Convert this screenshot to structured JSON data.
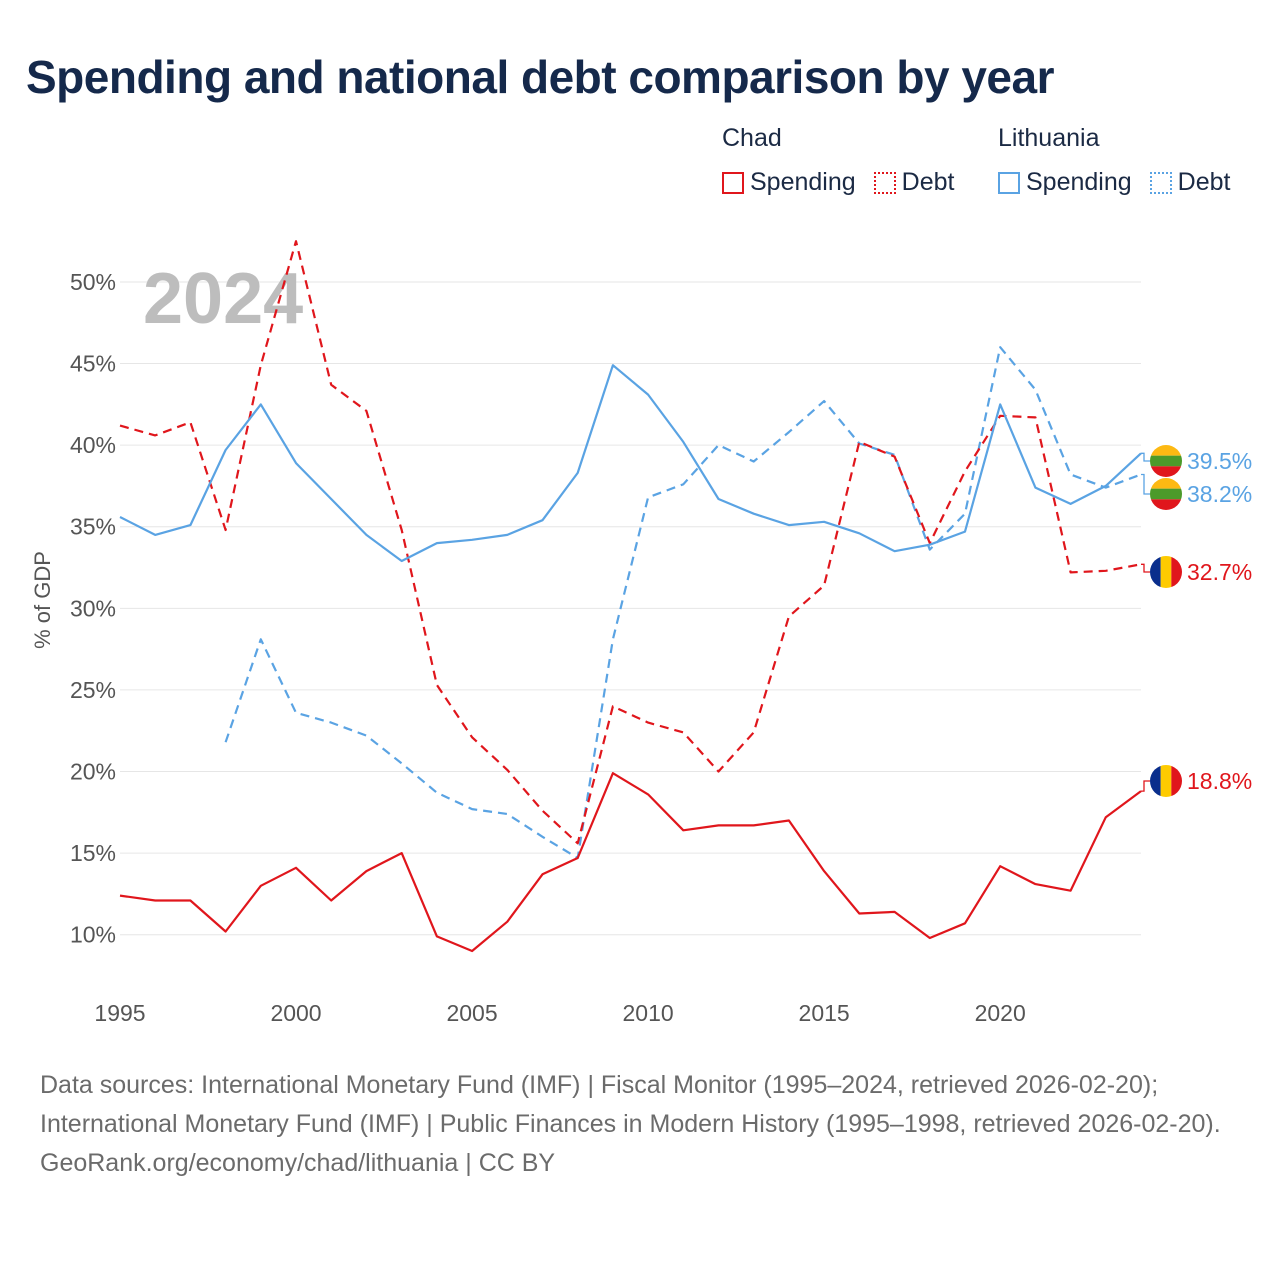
{
  "title": "Spending and national debt comparison by year",
  "legend": {
    "groups": [
      {
        "country": "Chad",
        "color": "#e0161c",
        "items": [
          {
            "label": "Spending",
            "style": "solid"
          },
          {
            "label": "Debt",
            "style": "dotted"
          }
        ]
      },
      {
        "country": "Lithuania",
        "color": "#5aa3e3",
        "items": [
          {
            "label": "Spending",
            "style": "solid"
          },
          {
            "label": "Debt",
            "style": "dotted"
          }
        ]
      }
    ]
  },
  "chart_data": {
    "type": "line",
    "title": "Spending and national debt comparison by year",
    "year_watermark": "2024",
    "xlabel": "",
    "ylabel": "% of GDP",
    "xlim": [
      1995,
      2024
    ],
    "ylim": [
      6,
      53
    ],
    "x_ticks": [
      1995,
      2000,
      2005,
      2010,
      2015,
      2020
    ],
    "y_ticks": [
      10,
      15,
      20,
      25,
      30,
      35,
      40,
      45,
      50
    ],
    "y_tick_suffix": "%",
    "grid": true,
    "series": [
      {
        "name": "Chad Spending",
        "country": "Chad",
        "color": "#e0161c",
        "dash": "solid",
        "x": [
          1995,
          1996,
          1997,
          1998,
          1999,
          2000,
          2001,
          2002,
          2003,
          2004,
          2005,
          2006,
          2007,
          2008,
          2009,
          2010,
          2011,
          2012,
          2013,
          2014,
          2015,
          2016,
          2017,
          2018,
          2019,
          2020,
          2021,
          2022,
          2023,
          2024
        ],
        "values": [
          12.4,
          12.1,
          12.1,
          10.2,
          13.0,
          14.1,
          12.1,
          13.9,
          15.0,
          9.9,
          9.0,
          10.8,
          13.7,
          14.7,
          19.9,
          18.6,
          16.4,
          16.7,
          16.7,
          17.0,
          13.9,
          11.3,
          11.4,
          9.8,
          10.7,
          14.2,
          13.1,
          12.7,
          17.2,
          18.8
        ],
        "end_label": "18.8%"
      },
      {
        "name": "Chad Debt",
        "country": "Chad",
        "color": "#e0161c",
        "dash": "dashed",
        "x": [
          1995,
          1996,
          1997,
          1998,
          1999,
          2000,
          2001,
          2002,
          2003,
          2004,
          2005,
          2006,
          2007,
          2008,
          2009,
          2010,
          2011,
          2012,
          2013,
          2014,
          2015,
          2016,
          2017,
          2018,
          2019,
          2020,
          2021,
          2022,
          2023,
          2024
        ],
        "values": [
          41.2,
          40.6,
          41.4,
          34.8,
          44.9,
          52.5,
          43.7,
          42.1,
          34.8,
          25.3,
          22.1,
          20.1,
          17.6,
          15.6,
          24.0,
          23.0,
          22.4,
          20.0,
          22.4,
          29.5,
          31.4,
          40.2,
          39.3,
          34.0,
          38.4,
          41.8,
          41.7,
          32.2,
          32.3,
          32.7
        ],
        "end_label": "32.7%"
      },
      {
        "name": "Lithuania Spending",
        "country": "Lithuania",
        "color": "#5aa3e3",
        "dash": "solid",
        "x": [
          1995,
          1996,
          1997,
          1998,
          1999,
          2000,
          2001,
          2002,
          2003,
          2004,
          2005,
          2006,
          2007,
          2008,
          2009,
          2010,
          2011,
          2012,
          2013,
          2014,
          2015,
          2016,
          2017,
          2018,
          2019,
          2020,
          2021,
          2022,
          2023,
          2024
        ],
        "values": [
          35.6,
          34.5,
          35.1,
          39.7,
          42.5,
          38.9,
          36.7,
          34.5,
          32.9,
          34.0,
          34.2,
          34.5,
          35.4,
          38.3,
          44.9,
          43.1,
          40.2,
          36.7,
          35.8,
          35.1,
          35.3,
          34.6,
          33.5,
          33.9,
          34.7,
          42.5,
          37.4,
          36.4,
          37.5,
          39.5
        ],
        "end_label": "39.5%"
      },
      {
        "name": "Lithuania Debt",
        "country": "Lithuania",
        "color": "#5aa3e3",
        "dash": "dashed",
        "x": [
          1998,
          1999,
          2000,
          2001,
          2002,
          2003,
          2004,
          2005,
          2006,
          2007,
          2008,
          2009,
          2010,
          2011,
          2012,
          2013,
          2014,
          2015,
          2016,
          2017,
          2018,
          2019,
          2020,
          2021,
          2022,
          2023,
          2024
        ],
        "values": [
          21.8,
          28.1,
          23.6,
          23.0,
          22.2,
          20.5,
          18.7,
          17.7,
          17.4,
          16.0,
          14.7,
          28.1,
          36.8,
          37.6,
          40.0,
          39.0,
          40.8,
          42.7,
          40.1,
          39.4,
          33.6,
          35.8,
          46.0,
          43.4,
          38.2,
          37.4,
          38.2
        ],
        "end_label": "38.2%"
      }
    ]
  },
  "footer": {
    "sources": "Data sources: International Monetary Fund (IMF) | Fiscal Monitor (1995–2024, retrieved 2026-02-20); International Monetary Fund (IMF) | Public Finances in Modern History (1995–1998, retrieved 2026-02-20).",
    "credit": "GeoRank.org/economy/chad/lithuania | CC BY"
  }
}
